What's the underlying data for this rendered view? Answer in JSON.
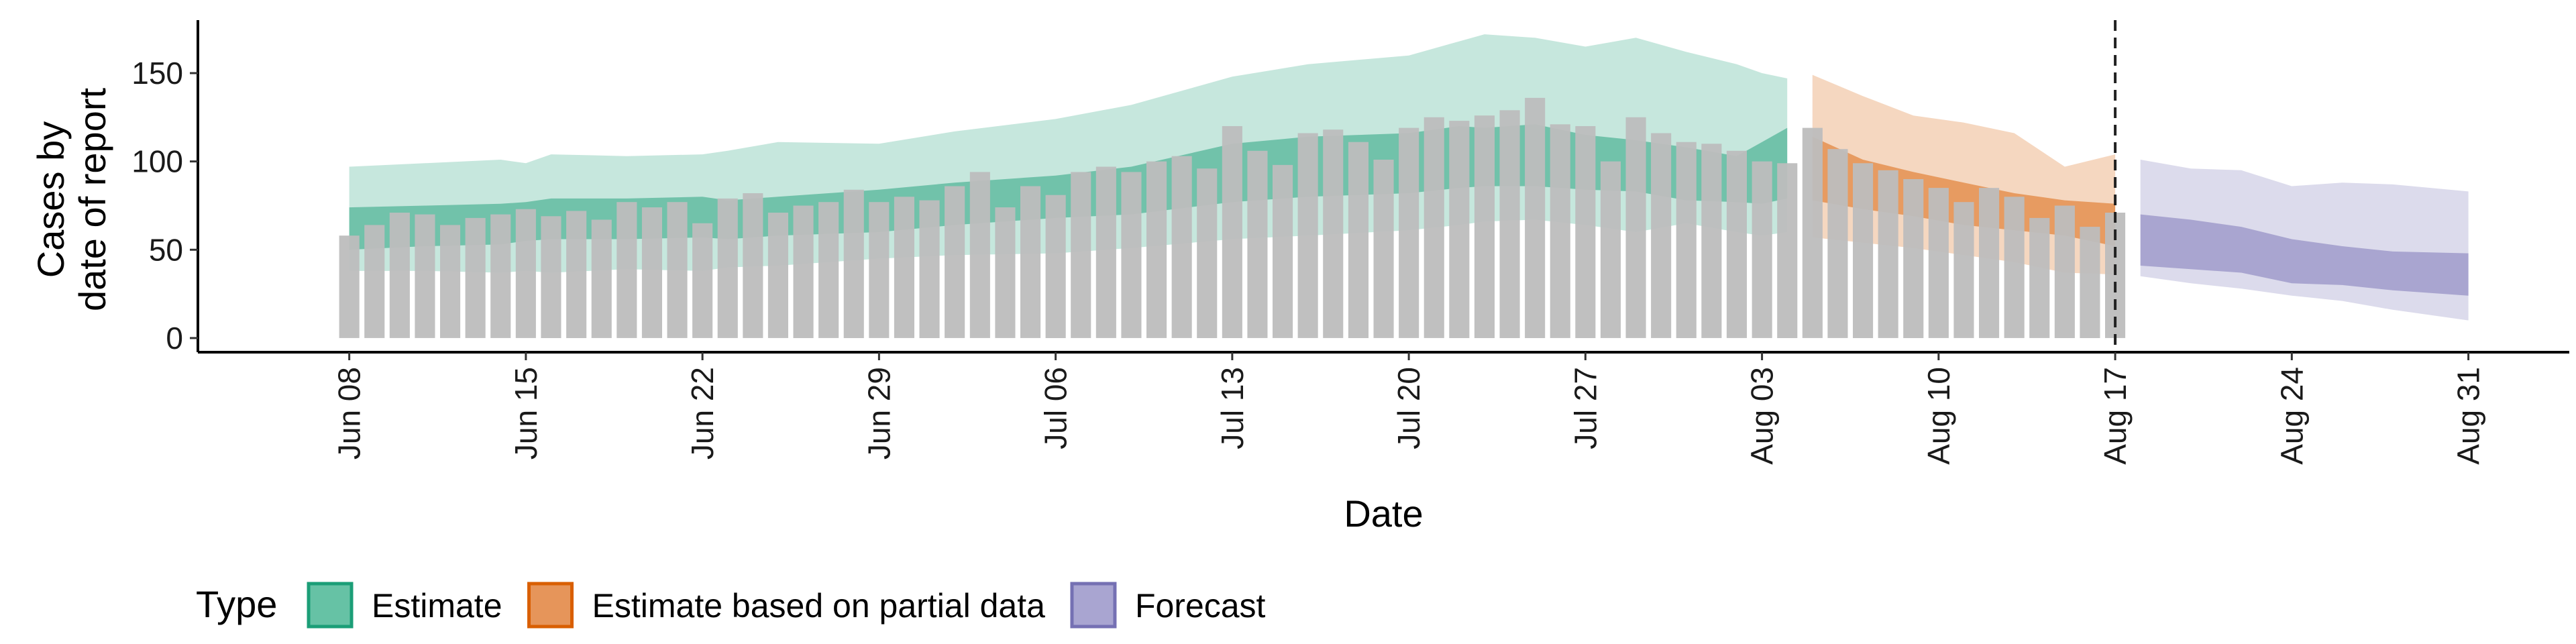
{
  "chart_data": {
    "type": "bar",
    "xlabel": "Date",
    "ylabel_lines": [
      "Cases by",
      "date of report"
    ],
    "ylim": [
      -8,
      180
    ],
    "y_ticks": [
      0,
      50,
      100,
      150
    ],
    "x_ticks": [
      {
        "date": "2020-06-08",
        "label": "Jun 08"
      },
      {
        "date": "2020-06-15",
        "label": "Jun 15"
      },
      {
        "date": "2020-06-22",
        "label": "Jun 22"
      },
      {
        "date": "2020-06-29",
        "label": "Jun 29"
      },
      {
        "date": "2020-07-06",
        "label": "Jul 06"
      },
      {
        "date": "2020-07-13",
        "label": "Jul 13"
      },
      {
        "date": "2020-07-20",
        "label": "Jul 20"
      },
      {
        "date": "2020-07-27",
        "label": "Jul 27"
      },
      {
        "date": "2020-08-03",
        "label": "Aug 03"
      },
      {
        "date": "2020-08-10",
        "label": "Aug 10"
      },
      {
        "date": "2020-08-17",
        "label": "Aug 17"
      },
      {
        "date": "2020-08-24",
        "label": "Aug 24"
      },
      {
        "date": "2020-08-31",
        "label": "Aug 31"
      }
    ],
    "xlim": [
      "2020-06-02",
      "2020-09-04"
    ],
    "vline_date": "2020-08-17",
    "bar_dates": [
      "2020-06-08",
      "2020-06-09",
      "2020-06-10",
      "2020-06-11",
      "2020-06-12",
      "2020-06-13",
      "2020-06-14",
      "2020-06-15",
      "2020-06-16",
      "2020-06-17",
      "2020-06-18",
      "2020-06-19",
      "2020-06-20",
      "2020-06-21",
      "2020-06-22",
      "2020-06-23",
      "2020-06-24",
      "2020-06-25",
      "2020-06-26",
      "2020-06-27",
      "2020-06-28",
      "2020-06-29",
      "2020-06-30",
      "2020-07-01",
      "2020-07-02",
      "2020-07-03",
      "2020-07-04",
      "2020-07-05",
      "2020-07-06",
      "2020-07-07",
      "2020-07-08",
      "2020-07-09",
      "2020-07-10",
      "2020-07-11",
      "2020-07-12",
      "2020-07-13",
      "2020-07-14",
      "2020-07-15",
      "2020-07-16",
      "2020-07-17",
      "2020-07-18",
      "2020-07-19",
      "2020-07-20",
      "2020-07-21",
      "2020-07-22",
      "2020-07-23",
      "2020-07-24",
      "2020-07-25",
      "2020-07-26",
      "2020-07-27",
      "2020-07-28",
      "2020-07-29",
      "2020-07-30",
      "2020-07-31",
      "2020-08-01",
      "2020-08-02",
      "2020-08-03",
      "2020-08-04",
      "2020-08-05",
      "2020-08-06",
      "2020-08-07",
      "2020-08-08",
      "2020-08-09",
      "2020-08-10",
      "2020-08-11",
      "2020-08-12",
      "2020-08-13",
      "2020-08-14",
      "2020-08-15",
      "2020-08-16",
      "2020-08-17"
    ],
    "bar_values": [
      58,
      64,
      71,
      70,
      64,
      68,
      70,
      73,
      69,
      72,
      67,
      77,
      74,
      77,
      65,
      79,
      82,
      71,
      75,
      77,
      84,
      77,
      80,
      78,
      86,
      94,
      74,
      86,
      81,
      94,
      97,
      94,
      100,
      103,
      96,
      120,
      106,
      98,
      116,
      118,
      111,
      101,
      119,
      125,
      123,
      126,
      129,
      136,
      121,
      120,
      100,
      125,
      116,
      111,
      110,
      106,
      100,
      99,
      119,
      107,
      99,
      95,
      90,
      85,
      77,
      85,
      80,
      68,
      75,
      63,
      71
    ],
    "series": [
      {
        "name": "Estimate",
        "color": "#1B9E77",
        "dates": [
          "2020-06-08",
          "2020-06-11",
          "2020-06-14",
          "2020-06-15",
          "2020-06-16",
          "2020-06-19",
          "2020-06-22",
          "2020-06-23",
          "2020-06-25",
          "2020-06-29",
          "2020-07-02",
          "2020-07-06",
          "2020-07-09",
          "2020-07-13",
          "2020-07-16",
          "2020-07-20",
          "2020-07-22",
          "2020-07-23",
          "2020-07-25",
          "2020-07-27",
          "2020-07-29",
          "2020-07-31",
          "2020-08-02",
          "2020-08-03",
          "2020-08-04"
        ],
        "outer_upper": [
          97,
          99,
          101,
          99,
          104,
          103,
          104,
          106,
          111,
          110,
          117,
          124,
          132,
          148,
          155,
          160,
          168,
          172,
          170,
          165,
          170,
          162,
          155,
          150,
          147
        ],
        "outer_lower": [
          38,
          38,
          37,
          38,
          37,
          39,
          38,
          40,
          41,
          45,
          47,
          48,
          51,
          56,
          58,
          61,
          64,
          66,
          67,
          64,
          60,
          65,
          60,
          58,
          60
        ],
        "inner_upper": [
          74,
          75,
          76,
          77,
          79,
          79,
          80,
          78,
          80,
          84,
          88,
          92,
          97,
          110,
          114,
          116,
          120,
          119,
          121,
          115,
          112,
          108,
          103,
          111,
          119
        ],
        "inner_lower": [
          50,
          52,
          53,
          55,
          56,
          56,
          57,
          56,
          58,
          60,
          64,
          68,
          70,
          77,
          80,
          82,
          85,
          86,
          86,
          84,
          83,
          78,
          77,
          76,
          79
        ]
      },
      {
        "name": "Estimate based on partial data",
        "color": "#D95F02",
        "dates": [
          "2020-08-05",
          "2020-08-07",
          "2020-08-09",
          "2020-08-11",
          "2020-08-13",
          "2020-08-15",
          "2020-08-17"
        ],
        "outer_upper": [
          149,
          137,
          126,
          122,
          116,
          97,
          104
        ],
        "outer_lower": [
          57,
          54,
          51,
          47,
          43,
          37,
          36
        ],
        "inner_upper": [
          114,
          101,
          94,
          88,
          82,
          78,
          76
        ],
        "inner_lower": [
          78,
          73,
          69,
          64,
          61,
          58,
          52
        ]
      },
      {
        "name": "Forecast",
        "color": "#7570B3",
        "dates": [
          "2020-08-18",
          "2020-08-20",
          "2020-08-22",
          "2020-08-24",
          "2020-08-26",
          "2020-08-28",
          "2020-08-31"
        ],
        "outer_upper": [
          101,
          96,
          95,
          86,
          88,
          87,
          83
        ],
        "outer_lower": [
          35,
          31,
          28,
          24,
          21,
          16,
          10
        ],
        "inner_upper": [
          70,
          67,
          63,
          56,
          52,
          49,
          48
        ],
        "inner_lower": [
          41,
          39,
          37,
          31,
          30,
          27,
          24
        ]
      }
    ],
    "legend": {
      "title": "Type",
      "position": "bottom-left",
      "items": [
        {
          "label": "Estimate",
          "fill": "#66C2A5",
          "stroke": "#1B9E77"
        },
        {
          "label": "Estimate based on partial data",
          "fill": "#E6955A",
          "stroke": "#D95F02"
        },
        {
          "label": "Forecast",
          "fill": "#A9A5D1",
          "stroke": "#7570B3"
        }
      ]
    },
    "bar_color": "#BDBDBD",
    "grid": false
  }
}
